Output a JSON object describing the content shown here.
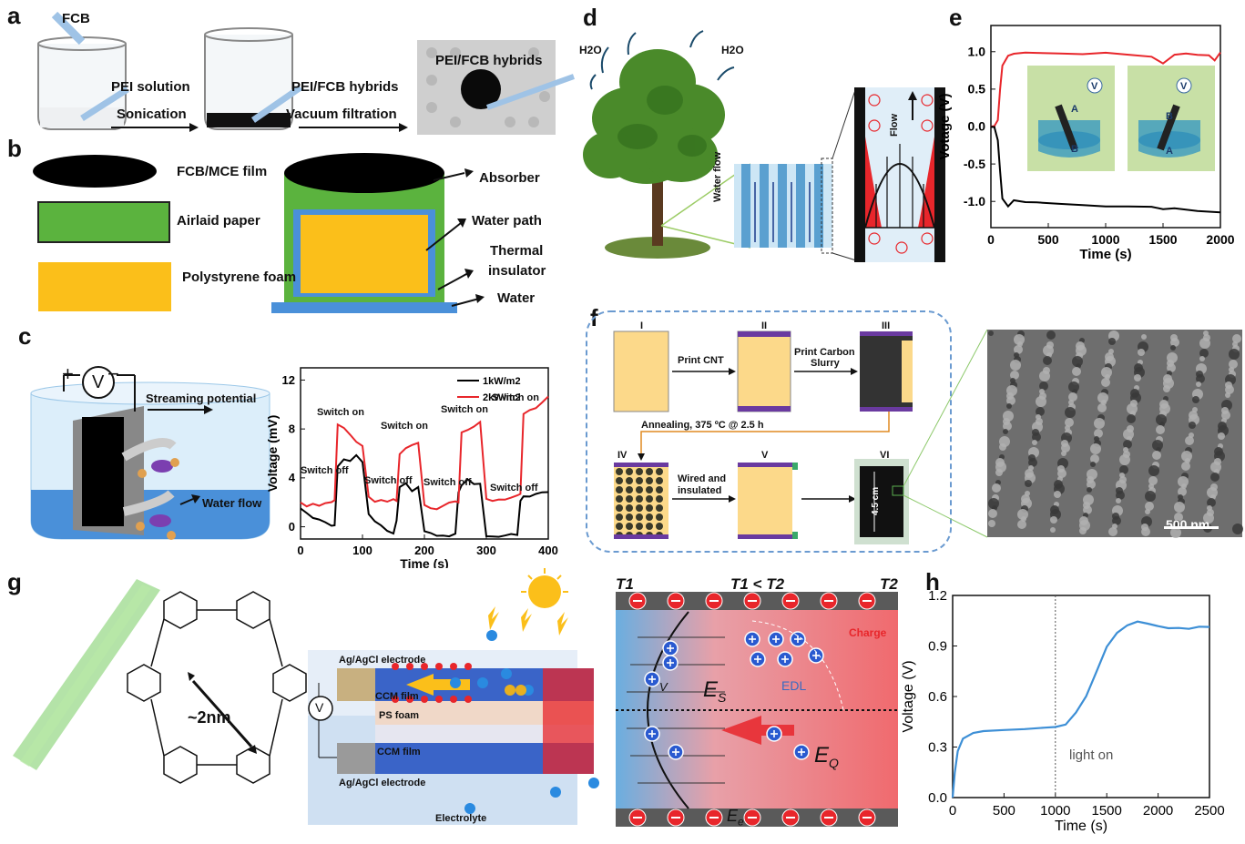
{
  "panel_labels": {
    "a": "a",
    "b": "b",
    "c": "c",
    "d": "d",
    "e": "e",
    "f": "f",
    "g": "g",
    "h": "h"
  },
  "panel_a": {
    "fcb": "FCB",
    "pei_solution": "PEI solution",
    "sonication": "Sonication",
    "hybrids": "PEI/FCB hybrids",
    "vacuum": "Vacuum filtration",
    "photo_label": "PEI/FCB hybrids"
  },
  "panel_b": {
    "legend": [
      {
        "label": "FCB/MCE film",
        "color": "#000000"
      },
      {
        "label": "Airlaid paper",
        "color": "#5bb33e"
      },
      {
        "label": "Polystyrene foam",
        "color": "#fbbf1a"
      }
    ],
    "absorber": "Absorber",
    "water_path": "Water path",
    "thermal": "Thermal",
    "insulator": "insulator",
    "water": "Water"
  },
  "panel_c": {
    "streaming": "Streaming potential",
    "water_flow": "Water flow",
    "plus": "+",
    "minus": "−",
    "v": "V",
    "annotations": [
      "Switch on",
      "Switch off",
      "Switch on",
      "Switch off",
      "Switch on",
      "Switch off",
      "Switch on",
      "Switch off"
    ]
  },
  "panel_d": {
    "h2o_left": "H2O",
    "h2o_right": "H2O",
    "water_flow": "Water flow",
    "flow": "Flow"
  },
  "panel_e": {
    "label_a": "A",
    "label_b": "B",
    "v": "V"
  },
  "panel_f": {
    "steps": [
      "I",
      "II",
      "III",
      "IV",
      "V",
      "VI"
    ],
    "print_cnt": "Print CNT",
    "print_carbon": "Print Carbon",
    "slurry": "Slurry",
    "annealing": "Annealing, 375 ºC @ 2.5 h",
    "wired": "Wired and",
    "insulated": "insulated",
    "size": "4.5 cm",
    "scale": "500 nm"
  },
  "panel_g": {
    "pore": "~2nm",
    "ag_top": "Ag/AgCl electrode",
    "ccm_top": "CCM film",
    "ps": "PS foam",
    "ccm_bottom": "CCM film",
    "ag_bottom": "Ag/AgCl electrode",
    "electrolyte": "Electrolyte",
    "v": "V",
    "t1": "T1",
    "t2": "T2",
    "t1_lt_t2": "T1 < T2",
    "charge": "Charge",
    "edl": "EDL",
    "es": "E",
    "es_sub": "S",
    "eq": "E",
    "eq_sub": "Q",
    "ee": "E",
    "ee_sub": "e",
    "v_small": "V"
  },
  "panel_h": {
    "light_on": "light on"
  },
  "colors": {
    "red": "#e8262b",
    "blue": "#4a90d9",
    "green": "#5bb33e",
    "yellow": "#fbbf1a"
  },
  "chart_data": [
    {
      "type": "line",
      "id": "c",
      "xlabel": "Time (s)",
      "ylabel": "Voltage (mV)",
      "xlim": [
        0,
        400
      ],
      "ylim": [
        -1,
        13
      ],
      "xticks": [
        0,
        100,
        200,
        300,
        400
      ],
      "yticks": [
        0,
        4,
        8,
        12
      ],
      "legend": "top-right",
      "series": [
        {
          "name": "1kW/m2",
          "color": "#000000",
          "x": [
            0,
            10,
            20,
            30,
            40,
            50,
            55,
            60,
            70,
            80,
            90,
            100,
            110,
            120,
            130,
            140,
            150,
            155,
            160,
            170,
            180,
            190,
            200,
            210,
            220,
            230,
            240,
            250,
            255,
            260,
            270,
            280,
            290,
            300,
            310,
            320,
            330,
            340,
            350,
            355,
            360,
            370,
            380,
            390,
            400
          ],
          "y": [
            1.5,
            1.2,
            0.8,
            0.6,
            0.3,
            0.0,
            0.1,
            5.0,
            5.6,
            5.4,
            5.8,
            5.2,
            1.0,
            0.5,
            0.2,
            -0.3,
            -0.6,
            0.4,
            3.2,
            3.6,
            3.0,
            3.3,
            -0.4,
            -0.6,
            -0.8,
            -0.7,
            -0.7,
            -0.5,
            2.8,
            3.3,
            3.8,
            3.5,
            3.6,
            -0.7,
            -0.8,
            -0.9,
            -0.8,
            -0.6,
            -0.6,
            2.2,
            2.5,
            2.4,
            2.6,
            2.8,
            2.9
          ]
        },
        {
          "name": "2kW/m2",
          "color": "#e8262b",
          "x": [
            0,
            10,
            20,
            30,
            40,
            50,
            55,
            60,
            70,
            80,
            90,
            100,
            110,
            120,
            130,
            140,
            150,
            155,
            160,
            170,
            180,
            190,
            200,
            210,
            220,
            230,
            240,
            250,
            255,
            260,
            270,
            280,
            290,
            300,
            310,
            320,
            330,
            340,
            350,
            355,
            360,
            370,
            380,
            390,
            400
          ],
          "y": [
            2.0,
            1.6,
            1.8,
            1.7,
            2.0,
            2.1,
            2.2,
            8.3,
            8.0,
            7.5,
            7.0,
            6.7,
            2.5,
            2.0,
            2.1,
            2.0,
            2.3,
            2.2,
            6.0,
            6.4,
            6.6,
            6.8,
            1.8,
            1.6,
            1.5,
            1.7,
            1.9,
            2.0,
            2.0,
            7.8,
            8.0,
            8.2,
            8.5,
            2.2,
            2.1,
            2.3,
            2.3,
            2.4,
            2.5,
            2.6,
            9.2,
            9.6,
            9.8,
            10.2,
            10.6
          ]
        }
      ]
    },
    {
      "type": "line",
      "id": "e",
      "xlabel": "Time (s)",
      "ylabel": "Votage (V)",
      "xlim": [
        0,
        2000
      ],
      "ylim": [
        -1.35,
        1.35
      ],
      "xticks": [
        0,
        500,
        1000,
        1500,
        2000
      ],
      "yticks": [
        1.0,
        0.5,
        0.0,
        -0.5,
        -1.0
      ],
      "series": [
        {
          "color": "#e8262b",
          "x": [
            0,
            30,
            60,
            80,
            100,
            150,
            200,
            300,
            400,
            600,
            700,
            800,
            1000,
            1200,
            1400,
            1500,
            1600,
            1700,
            1800,
            1900,
            1950,
            2000
          ],
          "y": [
            0.0,
            0.02,
            0.1,
            0.5,
            0.8,
            0.93,
            0.97,
            1.0,
            1.0,
            0.98,
            0.96,
            0.95,
            0.98,
            0.97,
            0.95,
            0.85,
            0.95,
            0.96,
            0.95,
            0.96,
            0.9,
            1.0
          ]
        },
        {
          "color": "#000000",
          "x": [
            0,
            30,
            60,
            80,
            100,
            150,
            200,
            300,
            400,
            600,
            800,
            1000,
            1200,
            1400,
            1500,
            1600,
            1800,
            2000
          ],
          "y": [
            0.0,
            -0.02,
            -0.2,
            -0.6,
            -0.95,
            -1.05,
            -0.98,
            -1.02,
            -1.03,
            -1.04,
            -1.04,
            -1.05,
            -1.06,
            -1.08,
            -1.12,
            -1.1,
            -1.12,
            -1.13
          ]
        }
      ]
    },
    {
      "type": "line",
      "id": "h",
      "xlabel": "Time (s)",
      "ylabel": "Voltage (V)",
      "xlim": [
        0,
        2500
      ],
      "ylim": [
        0.0,
        1.2
      ],
      "xticks": [
        0,
        500,
        1000,
        1500,
        2000,
        2500
      ],
      "yticks": [
        0.0,
        0.3,
        0.6,
        0.9,
        1.2
      ],
      "vline": 1000,
      "series": [
        {
          "color": "#3d8fd6",
          "x": [
            0,
            20,
            50,
            100,
            200,
            300,
            500,
            700,
            900,
            1000,
            1100,
            1200,
            1300,
            1400,
            1500,
            1600,
            1700,
            1800,
            1900,
            2000,
            2100,
            2200,
            2300,
            2400,
            2500
          ],
          "y": [
            0.0,
            0.15,
            0.28,
            0.35,
            0.38,
            0.39,
            0.4,
            0.41,
            0.42,
            0.42,
            0.43,
            0.5,
            0.6,
            0.75,
            0.9,
            0.98,
            1.02,
            1.04,
            1.03,
            1.02,
            1.01,
            1.01,
            1.0,
            1.01,
            1.01
          ]
        }
      ]
    }
  ]
}
